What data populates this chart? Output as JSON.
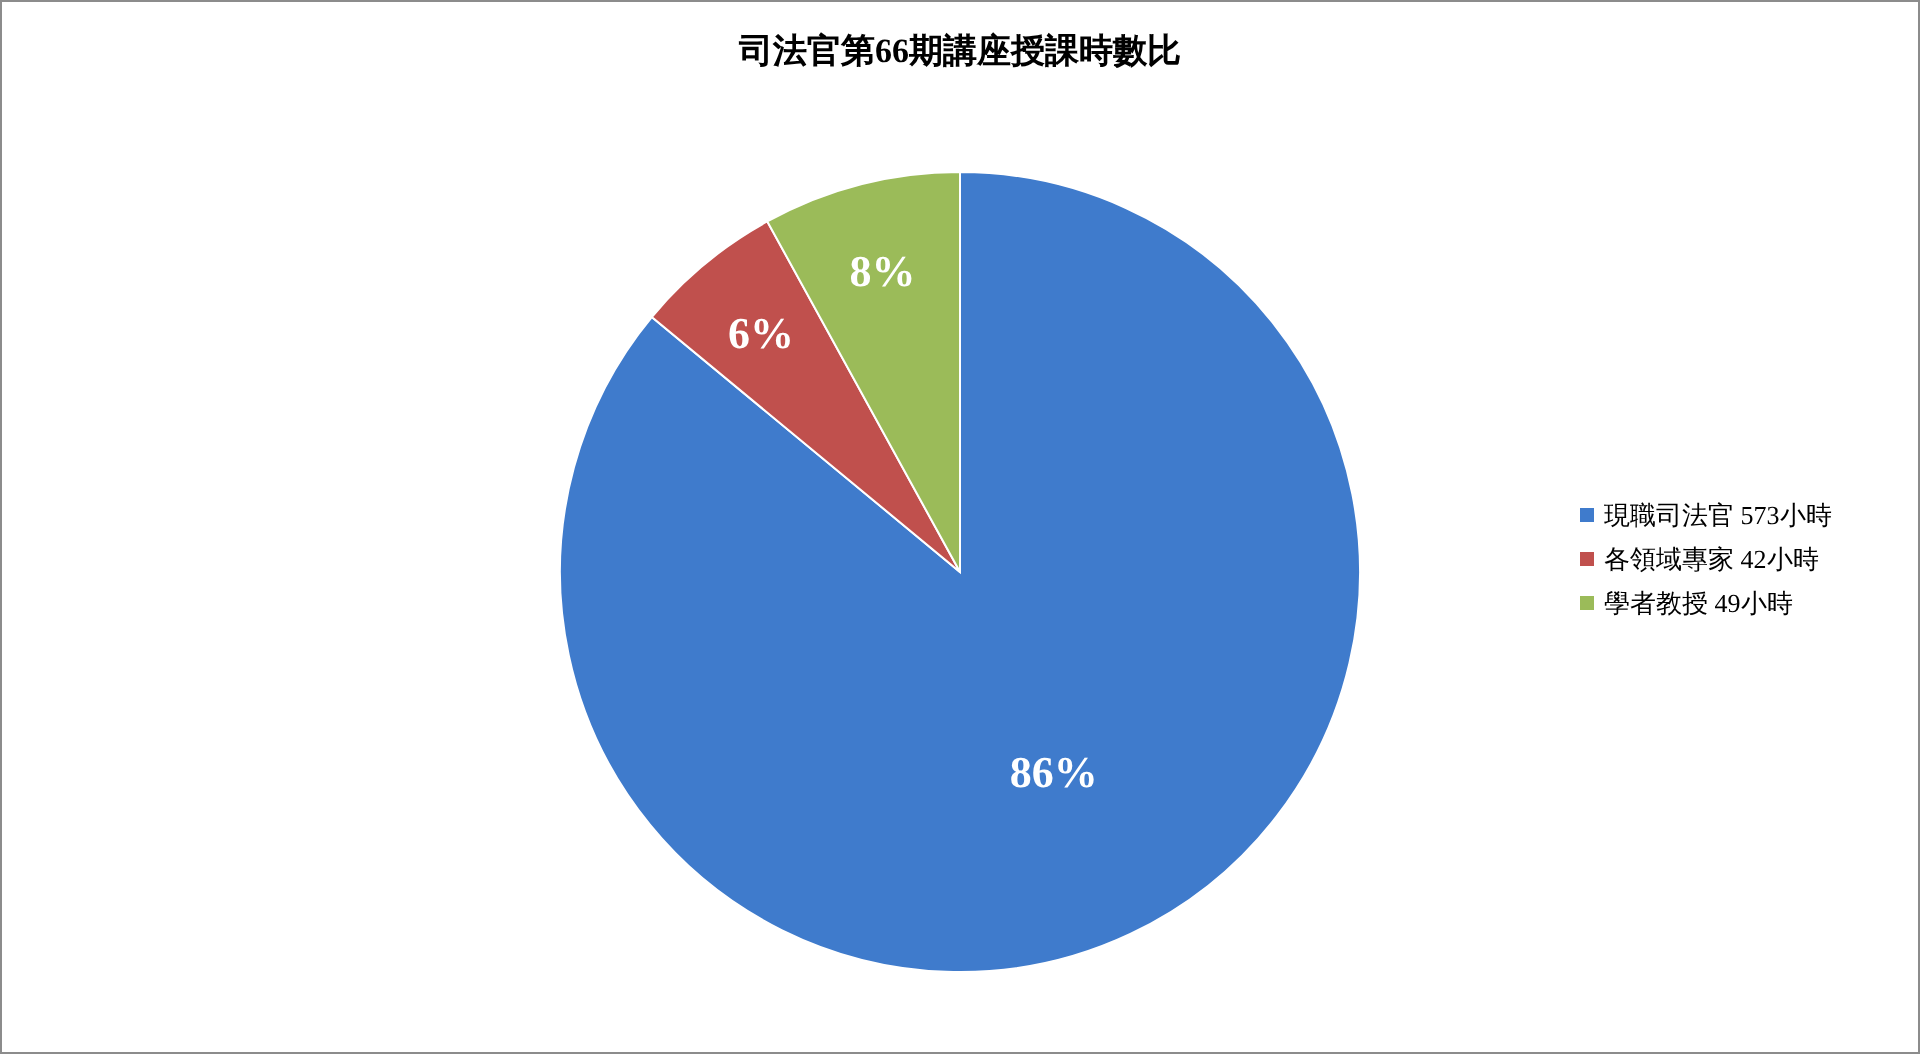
{
  "chart_data": {
    "type": "pie",
    "title": "司法官第66期講座授課時數比",
    "categories": [
      "現職司法官 573小時",
      "各領域專家 42小時",
      "學者教授 49小時"
    ],
    "values": [
      86,
      6,
      8
    ],
    "colors": [
      "#3f7bcc",
      "#c0504d",
      "#9bbb59"
    ],
    "value_labels": [
      "86%",
      "6%",
      "8%"
    ],
    "legend": "right"
  }
}
